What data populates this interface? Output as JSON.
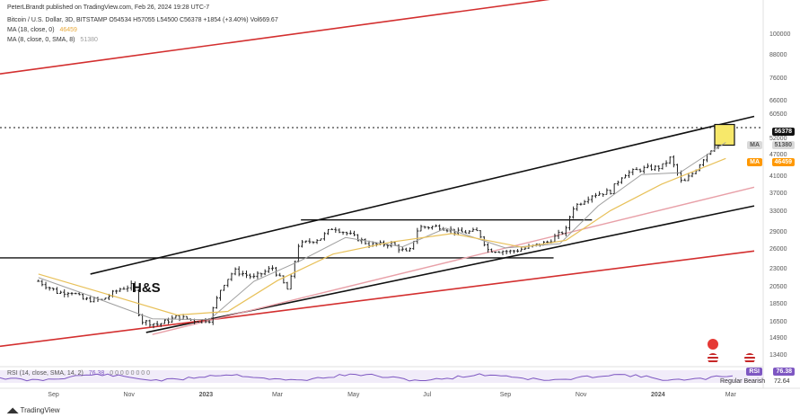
{
  "header": {
    "published": "PeterLBrandt published on TradingView.com, Feb 26, 2024 19:28 UTC-7",
    "symbol_line": "Bitcoin / U.S. Dollar, 3D, BITSTAMP  O54534  H57055  L54500  C56378  +1854 (+3.40%)  Vol669.67",
    "ma1_label": "MA (18, close, 0)",
    "ma1_value": "46459",
    "ma2_label": "MA (8, close, 0, SMA, 8)",
    "ma2_value": "51380"
  },
  "annotation": "H&S",
  "footer": "TradingView",
  "colors": {
    "ma_fast": "#9e9e9e",
    "ma_slow": "#e8c15a",
    "channel_red": "#d32f2f",
    "rsi": "#7e57c2",
    "accent_orange": "#ff9800"
  },
  "icons": [
    "flash-icon",
    "us-flag-icon",
    "us-flag-icon"
  ],
  "chart_data": {
    "type": "ohlc",
    "scale": "log",
    "y_ticks": [
      "100000",
      "88000",
      "76000",
      "66000",
      "60500",
      "52000",
      "47000",
      "41000",
      "37000",
      "33000",
      "29000",
      "26000",
      "23000",
      "20500",
      "18500",
      "16500",
      "14900",
      "13400"
    ],
    "x_ticks": [
      "Sep",
      "Nov",
      "2023",
      "Mar",
      "May",
      "Jul",
      "Sep",
      "Nov",
      "2024",
      "Mar"
    ],
    "price_labels": {
      "last": "56378",
      "ma8_tag": "MA",
      "ma8": "51380",
      "ma18_tag": "MA",
      "ma18": "46459"
    },
    "rsi": {
      "label": "RSI (14, close, SMA, 14, 2)",
      "value": "76.38",
      "value_tag": "RSI",
      "flags": "0 0 0 0 0 0 0 0",
      "signal": "Regular Bearish",
      "signal_value": "72.64"
    },
    "close_series": [
      [
        "2022-08-20",
        21500
      ],
      [
        "2022-09-05",
        20000
      ],
      [
        "2022-09-15",
        20200
      ],
      [
        "2022-09-25",
        19200
      ],
      [
        "2022-10-10",
        19100
      ],
      [
        "2022-10-25",
        20500
      ],
      [
        "2022-11-05",
        21000
      ],
      [
        "2022-11-10",
        16800
      ],
      [
        "2022-11-25",
        16400
      ],
      [
        "2022-12-10",
        17200
      ],
      [
        "2022-12-25",
        16800
      ],
      [
        "2023-01-05",
        16900
      ],
      [
        "2023-01-15",
        20800
      ],
      [
        "2023-01-25",
        23000
      ],
      [
        "2023-02-10",
        22000
      ],
      [
        "2023-02-25",
        23400
      ],
      [
        "2023-03-10",
        20200
      ],
      [
        "2023-03-18",
        27000
      ],
      [
        "2023-04-05",
        28200
      ],
      [
        "2023-04-15",
        30200
      ],
      [
        "2023-05-01",
        28500
      ],
      [
        "2023-05-15",
        27000
      ],
      [
        "2023-06-01",
        27200
      ],
      [
        "2023-06-15",
        25500
      ],
      [
        "2023-06-23",
        30200
      ],
      [
        "2023-07-10",
        30300
      ],
      [
        "2023-07-25",
        29200
      ],
      [
        "2023-08-10",
        29400
      ],
      [
        "2023-08-18",
        26200
      ],
      [
        "2023-09-05",
        25900
      ],
      [
        "2023-09-20",
        26600
      ],
      [
        "2023-10-05",
        27500
      ],
      [
        "2023-10-20",
        29700
      ],
      [
        "2023-10-25",
        34000
      ],
      [
        "2023-11-10",
        37000
      ],
      [
        "2023-11-25",
        37800
      ],
      [
        "2023-12-05",
        42000
      ],
      [
        "2023-12-20",
        43500
      ],
      [
        "2024-01-05",
        44000
      ],
      [
        "2024-01-12",
        46500
      ],
      [
        "2024-01-22",
        39500
      ],
      [
        "2024-02-01",
        43000
      ],
      [
        "2024-02-10",
        47500
      ],
      [
        "2024-02-20",
        51800
      ],
      [
        "2024-02-26",
        56378
      ]
    ],
    "ma_fast_series": [
      [
        "2022-08-20",
        22000
      ],
      [
        "2022-10-01",
        19600
      ],
      [
        "2022-11-20",
        17000
      ],
      [
        "2023-01-05",
        16900
      ],
      [
        "2023-02-10",
        21500
      ],
      [
        "2023-03-20",
        24500
      ],
      [
        "2023-04-25",
        28300
      ],
      [
        "2023-06-10",
        26700
      ],
      [
        "2023-07-15",
        30000
      ],
      [
        "2023-09-01",
        26500
      ],
      [
        "2023-10-15",
        27200
      ],
      [
        "2023-11-15",
        34500
      ],
      [
        "2023-12-20",
        42000
      ],
      [
        "2024-01-20",
        42500
      ],
      [
        "2024-02-26",
        51380
      ]
    ],
    "ma_slow_series": [
      [
        "2022-08-20",
        22500
      ],
      [
        "2022-10-15",
        19800
      ],
      [
        "2022-12-10",
        17400
      ],
      [
        "2023-01-20",
        17800
      ],
      [
        "2023-03-01",
        21600
      ],
      [
        "2023-04-15",
        25500
      ],
      [
        "2023-06-01",
        27500
      ],
      [
        "2023-07-20",
        29000
      ],
      [
        "2023-09-15",
        26600
      ],
      [
        "2023-10-20",
        27800
      ],
      [
        "2023-11-25",
        33500
      ],
      [
        "2024-01-05",
        39500
      ],
      [
        "2024-02-26",
        46459
      ]
    ],
    "trendlines": [
      {
        "name": "upper-channel",
        "from": [
          "2022-10-01",
          22500
        ],
        "to": [
          "2024-03-20",
          60500
        ]
      },
      {
        "name": "lower-channel",
        "from": [
          "2022-11-15",
          15600
        ],
        "to": [
          "2024-03-20",
          34500
        ]
      },
      {
        "name": "neckline-low",
        "from": [
          "2022-07-20",
          24900
        ],
        "to": [
          "2023-10-10",
          24900
        ]
      },
      {
        "name": "neckline-high",
        "from": [
          "2023-03-20",
          31600
        ],
        "to": [
          "2023-11-10",
          31600
        ]
      },
      {
        "name": "red-upper",
        "from": [
          "2022-07-20",
          79000
        ],
        "to": [
          "2024-03-20",
          150000
        ]
      },
      {
        "name": "red-lower",
        "from": [
          "2022-07-20",
          14300
        ],
        "to": [
          "2024-03-20",
          26000
        ]
      },
      {
        "name": "pink-mid",
        "from": [
          "2022-11-20",
          15400
        ],
        "to": [
          "2024-03-20",
          38800
        ]
      }
    ],
    "last_price_line": 56378
  }
}
